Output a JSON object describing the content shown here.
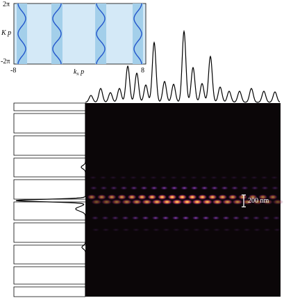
{
  "inset": {
    "y_ticks": [
      "2π",
      "-2π"
    ],
    "y_label": "K p",
    "x_ticks": [
      "-8",
      "8"
    ],
    "x_label": {
      "main": "k",
      "sub": "x",
      "tail": " p"
    }
  },
  "scale_bar": "200 nm"
}
